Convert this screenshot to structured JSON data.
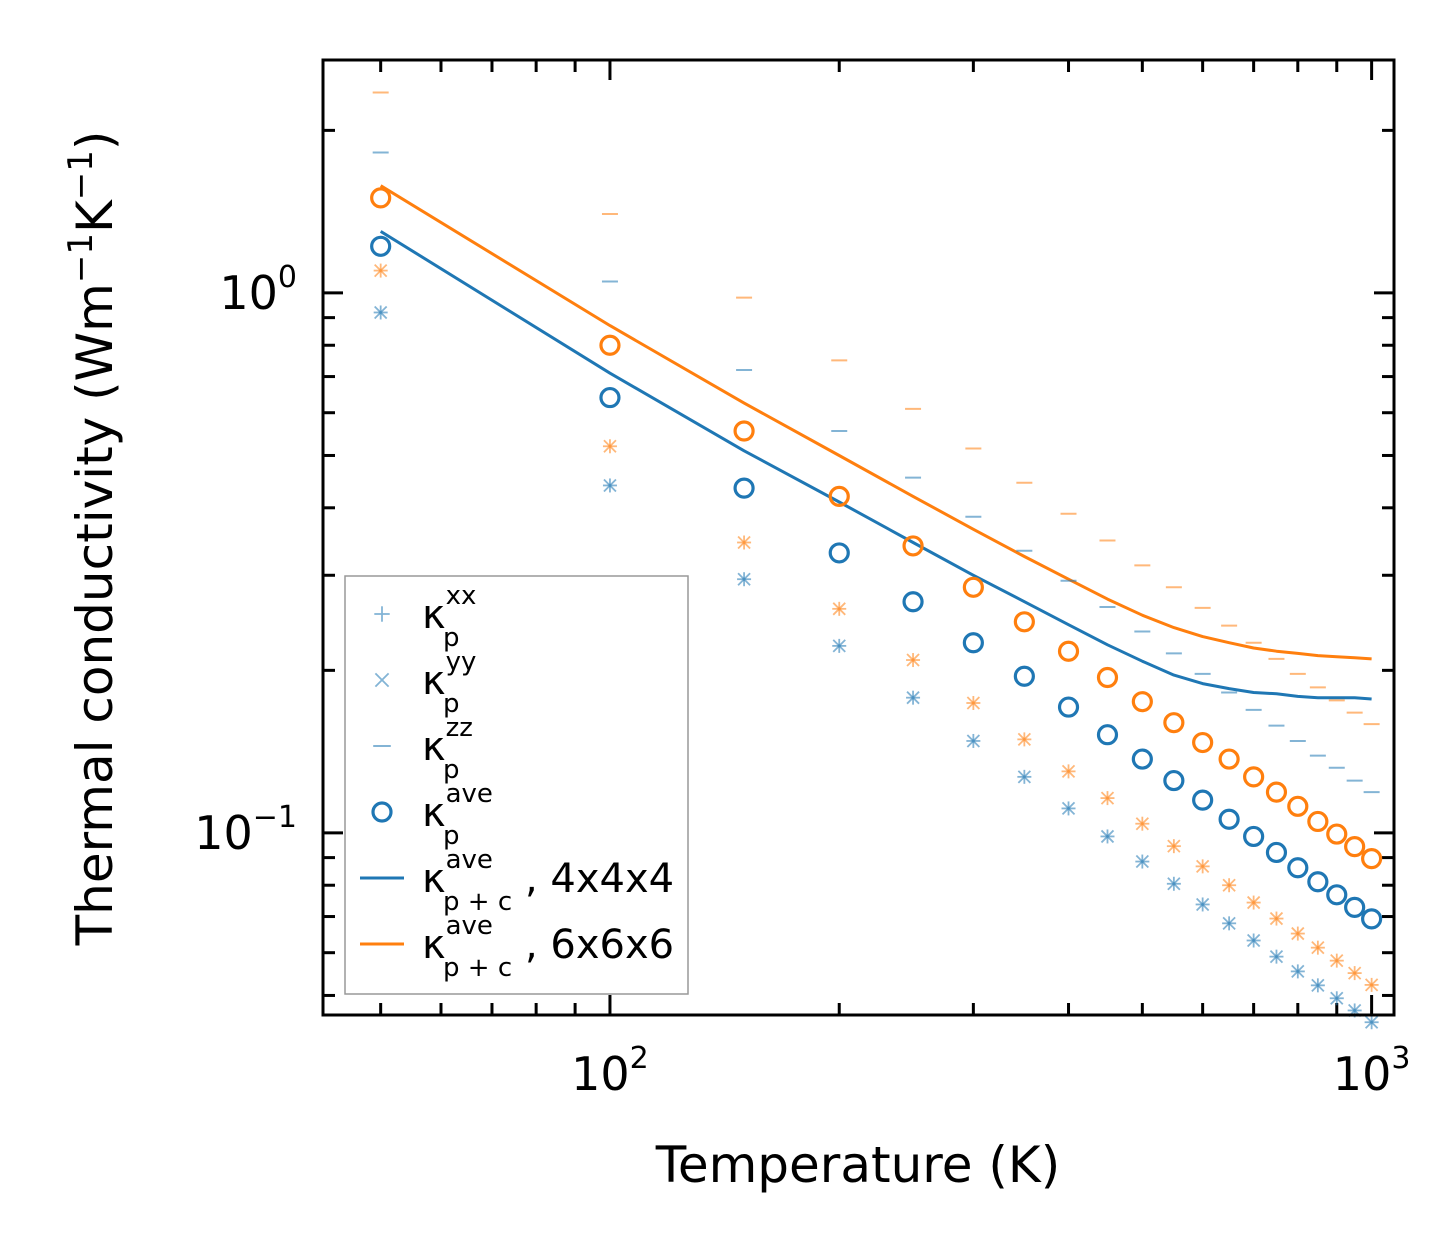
{
  "chart_data": {
    "type": "scatter",
    "title": "",
    "xscale": "log",
    "yscale": "log",
    "xlim": [
      42,
      1070
    ],
    "ylim": [
      0.046,
      2.7
    ],
    "xlabel": "Temperature (K)",
    "ylabel": {
      "main": "Thermal conductivity (Wm",
      "exp1": "−1",
      "mid": "K",
      "exp2": "−1",
      "end": ")"
    },
    "xticks": [
      {
        "value": 100,
        "base": "10",
        "exp": "2"
      },
      {
        "value": 1000,
        "base": "10",
        "exp": "3"
      }
    ],
    "yticks": [
      {
        "value": 1.0,
        "base": "10",
        "exp": "0"
      },
      {
        "value": 0.1,
        "base": "10",
        "exp": "−1"
      }
    ],
    "colors": {
      "blue": "#1f77b4",
      "orange": "#ff7f0e"
    },
    "x": [
      50,
      100,
      150,
      200,
      250,
      300,
      350,
      400,
      450,
      500,
      550,
      600,
      650,
      700,
      750,
      800,
      850,
      900,
      950,
      1000
    ],
    "series": [
      {
        "name": "kxx_4x4x4",
        "marker": "plus",
        "color": "#1f77b4",
        "alpha": 0.55,
        "values": [
          0.92,
          0.44,
          0.295,
          0.222,
          0.178,
          0.148,
          0.127,
          0.111,
          0.0985,
          0.0885,
          0.0805,
          0.0737,
          0.068,
          0.0632,
          0.059,
          0.0554,
          0.0522,
          0.0494,
          0.0469,
          0.0446
        ]
      },
      {
        "name": "kyy_4x4x4",
        "marker": "x",
        "color": "#1f77b4",
        "alpha": 0.55,
        "values": [
          0.92,
          0.44,
          0.295,
          0.222,
          0.178,
          0.148,
          0.127,
          0.111,
          0.0985,
          0.0885,
          0.0805,
          0.0737,
          0.068,
          0.0632,
          0.059,
          0.0554,
          0.0522,
          0.0494,
          0.0469,
          0.0446
        ]
      },
      {
        "name": "kzz_4x4x4",
        "marker": "hline",
        "color": "#1f77b4",
        "alpha": 0.55,
        "values": [
          1.82,
          1.05,
          0.72,
          0.555,
          0.455,
          0.385,
          0.333,
          0.293,
          0.262,
          0.236,
          0.215,
          0.197,
          0.182,
          0.169,
          0.158,
          0.148,
          0.139,
          0.132,
          0.125,
          0.119
        ]
      },
      {
        "name": "kave_4x4x4",
        "marker": "circle",
        "color": "#1f77b4",
        "alpha": 1,
        "values": [
          1.22,
          0.64,
          0.435,
          0.33,
          0.268,
          0.225,
          0.195,
          0.171,
          0.152,
          0.137,
          0.125,
          0.115,
          0.106,
          0.0985,
          0.092,
          0.0862,
          0.0812,
          0.0768,
          0.0728,
          0.0693
        ]
      },
      {
        "name": "kxx_6x6x6",
        "marker": "plus",
        "color": "#ff7f0e",
        "alpha": 0.55,
        "values": [
          1.1,
          0.52,
          0.345,
          0.26,
          0.209,
          0.174,
          0.149,
          0.13,
          0.116,
          0.104,
          0.0945,
          0.0867,
          0.08,
          0.0743,
          0.0694,
          0.0651,
          0.0613,
          0.058,
          0.055,
          0.0523
        ]
      },
      {
        "name": "kyy_6x6x6",
        "marker": "x",
        "color": "#ff7f0e",
        "alpha": 0.55,
        "values": [
          1.1,
          0.52,
          0.345,
          0.26,
          0.209,
          0.174,
          0.149,
          0.13,
          0.116,
          0.104,
          0.0945,
          0.0867,
          0.08,
          0.0743,
          0.0694,
          0.0651,
          0.0613,
          0.058,
          0.055,
          0.0523
        ]
      },
      {
        "name": "kzz_6x6x6",
        "marker": "hline",
        "color": "#ff7f0e",
        "alpha": 0.55,
        "values": [
          2.35,
          1.4,
          0.98,
          0.75,
          0.61,
          0.515,
          0.445,
          0.39,
          0.348,
          0.313,
          0.285,
          0.261,
          0.242,
          0.225,
          0.21,
          0.197,
          0.186,
          0.176,
          0.167,
          0.159
        ]
      },
      {
        "name": "kave_6x6x6",
        "marker": "circle",
        "color": "#ff7f0e",
        "alpha": 1,
        "values": [
          1.5,
          0.8,
          0.555,
          0.42,
          0.34,
          0.285,
          0.246,
          0.217,
          0.194,
          0.175,
          0.16,
          0.147,
          0.137,
          0.127,
          0.119,
          0.112,
          0.105,
          0.0995,
          0.0943,
          0.0896
        ]
      },
      {
        "name": "kpc_ave_4x4x4",
        "marker": "line",
        "color": "#1f77b4",
        "alpha": 1,
        "values": [
          1.3,
          0.71,
          0.51,
          0.41,
          0.345,
          0.3,
          0.268,
          0.243,
          0.223,
          0.208,
          0.196,
          0.189,
          0.185,
          0.182,
          0.181,
          0.179,
          0.178,
          0.178,
          0.178,
          0.177
        ]
      },
      {
        "name": "kpc_ave_6x6x6",
        "marker": "line",
        "color": "#ff7f0e",
        "alpha": 1,
        "values": [
          1.58,
          0.87,
          0.625,
          0.5,
          0.42,
          0.365,
          0.325,
          0.295,
          0.271,
          0.253,
          0.24,
          0.231,
          0.225,
          0.22,
          0.217,
          0.215,
          0.213,
          0.212,
          0.211,
          0.21
        ]
      }
    ],
    "legend": {
      "position": "lower-left",
      "entries": [
        {
          "marker": "plus",
          "base": "κ",
          "sub": "p",
          "sup": "xx",
          "suffix": ""
        },
        {
          "marker": "x",
          "base": "κ",
          "sub": "p",
          "sup": "yy",
          "suffix": ""
        },
        {
          "marker": "hline",
          "base": "κ",
          "sub": "p",
          "sup": "zz",
          "suffix": ""
        },
        {
          "marker": "circle",
          "base": "κ",
          "sub": "p",
          "sup": "ave",
          "suffix": ""
        },
        {
          "marker": "line-blue",
          "base": "κ",
          "sub": "p + c",
          "sup": "ave",
          "suffix": ", 4x4x4"
        },
        {
          "marker": "line-orange",
          "base": "κ",
          "sub": "p + c",
          "sup": "ave",
          "suffix": ", 6x6x6"
        }
      ]
    }
  }
}
